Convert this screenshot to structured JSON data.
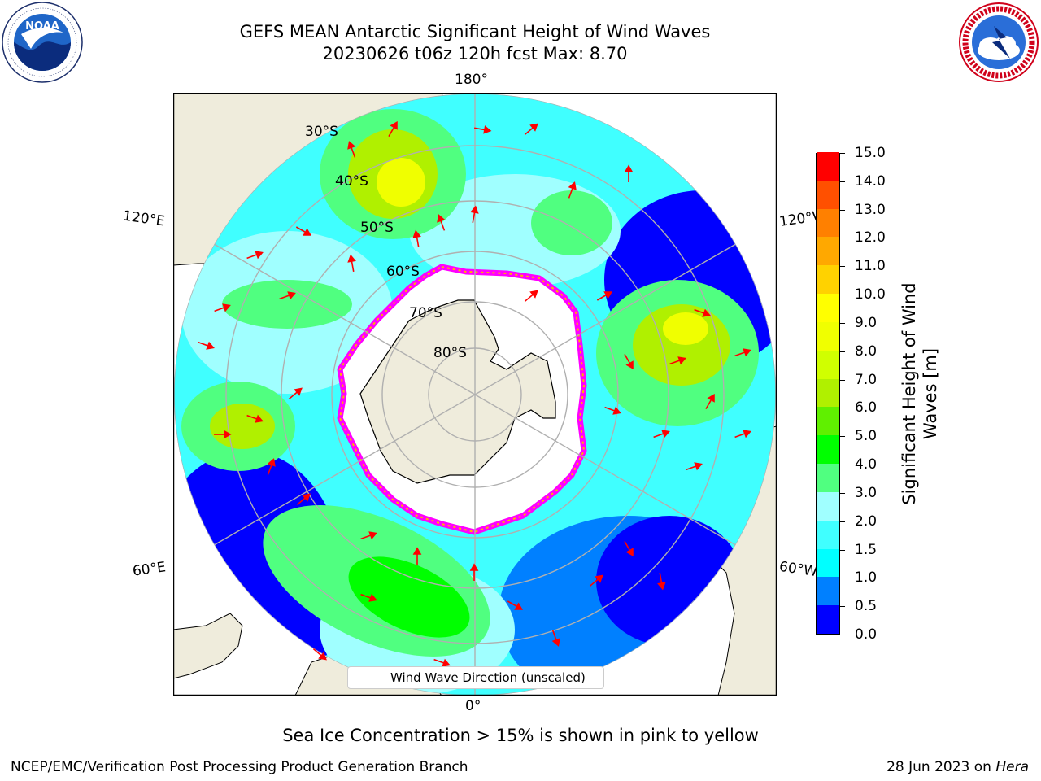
{
  "header": {
    "title": "GEFS MEAN Antarctic Significant Height of Wind Waves",
    "subtitle": "20230626 t06z 120h fcst   Max: 8.70"
  },
  "logos": {
    "left": {
      "name": "NOAA",
      "ring_text": "NATIONAL OCEANIC AND ATMOSPHERIC ADMINISTRATION · U.S. DEPARTMENT OF COMMERCE"
    },
    "right": {
      "name": "NATIONAL WEATHER SERVICE"
    }
  },
  "map": {
    "projection": "south-polar-stereographic",
    "center_meridian_top": "180°",
    "longitude_labels": {
      "top": "180°",
      "bottom": "0°",
      "upper_left": "120°E",
      "upper_right": "120°W",
      "lower_left": "60°E",
      "lower_right": "60°W"
    },
    "latitude_labels": [
      "30°S",
      "40°S",
      "50°S",
      "60°S",
      "70°S",
      "80°S"
    ],
    "legend": {
      "label": "Wind Wave Direction (unscaled)"
    },
    "colors": {
      "land": "#efecdc",
      "ice_free_ocean": "#ffffff",
      "graticule": "#b0b0b0",
      "arrow": "#ff0000",
      "sea_ice_edge": [
        "#ff00ff",
        "#ffb300",
        "#ffff00"
      ]
    }
  },
  "colorbar": {
    "label": "Significant Height of Wind Waves [m]",
    "ticks": [
      "0.0",
      "0.5",
      "1.0",
      "1.5",
      "2.0",
      "3.0",
      "4.0",
      "5.0",
      "6.0",
      "7.0",
      "8.0",
      "9.0",
      "10.0",
      "11.0",
      "12.0",
      "13.0",
      "14.0",
      "15.0"
    ],
    "colors": [
      "#0000ff",
      "#0080ff",
      "#00ffff",
      "#40ffff",
      "#a0ffff",
      "#50ff80",
      "#00ff00",
      "#60f000",
      "#b0f000",
      "#d0ff00",
      "#f0ff00",
      "#ffff00",
      "#ffd200",
      "#ffa800",
      "#ff8000",
      "#ff5000",
      "#ff0000"
    ]
  },
  "notes": {
    "sea_ice": "Sea Ice Concentration > 15% is shown in pink to yellow"
  },
  "footer": {
    "left": "NCEP/EMC/Verification Post Processing Product Generation Branch",
    "date": "28 Jun 2023 on ",
    "machine": "Hera"
  }
}
